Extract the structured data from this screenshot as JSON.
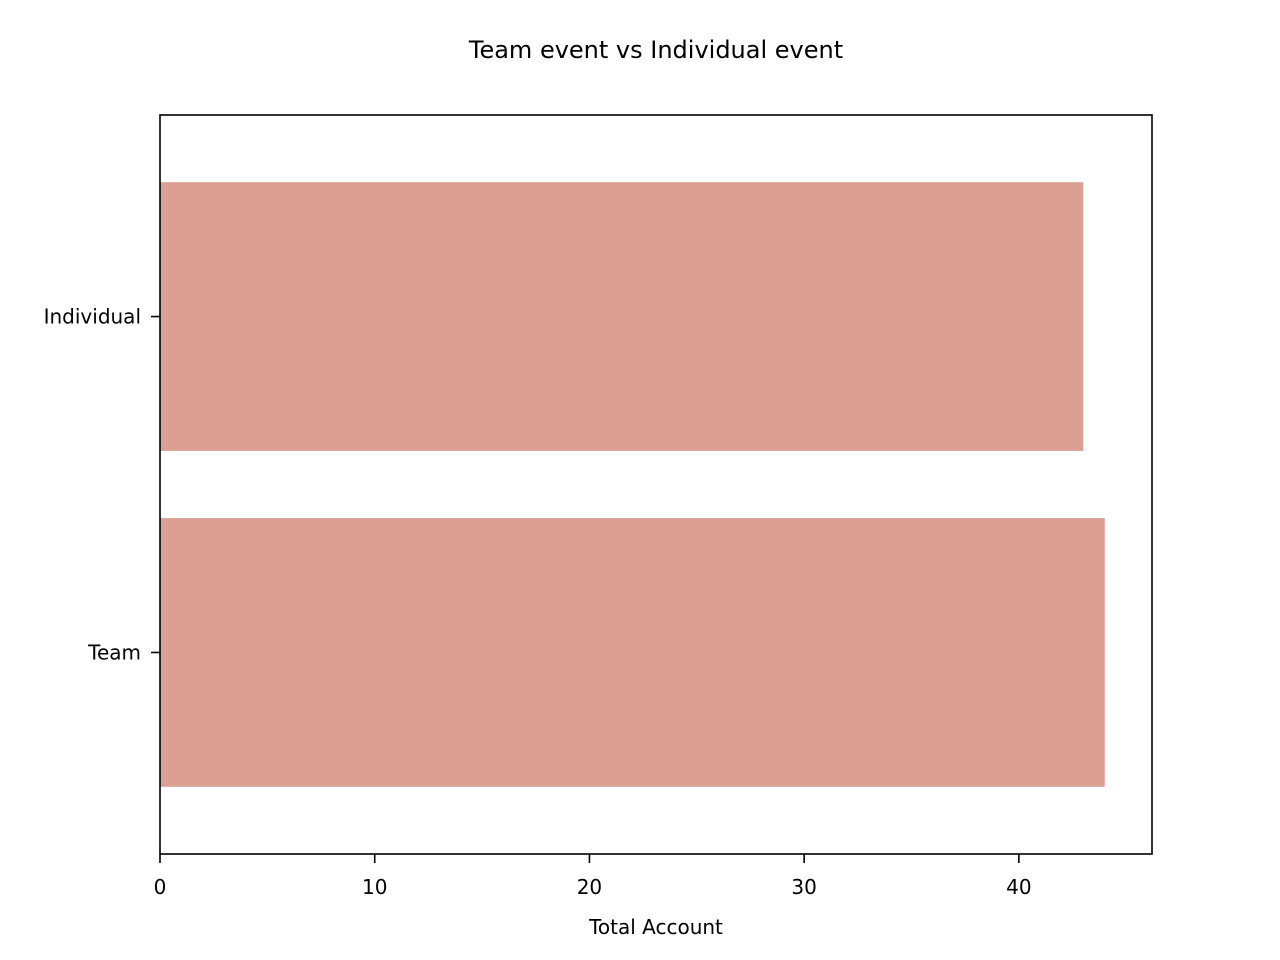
{
  "chart_data": {
    "type": "bar",
    "orientation": "horizontal",
    "title": "Team event vs Individual event",
    "xlabel": "Total Account",
    "ylabel": "",
    "categories": [
      "Individual",
      "Team"
    ],
    "values": [
      43,
      44
    ],
    "xlim": [
      0,
      46.2
    ],
    "xticks": [
      0,
      10,
      20,
      30,
      40
    ],
    "grid": false,
    "legend": "none",
    "colors": {
      "bar": "#dc9f94"
    }
  }
}
